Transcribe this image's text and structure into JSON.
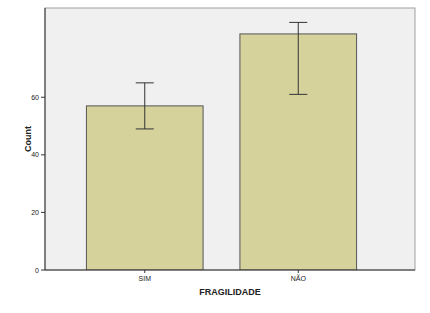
{
  "chart_data": {
    "type": "bar",
    "categories": [
      "SIM",
      "NÃO"
    ],
    "values": [
      57,
      82
    ],
    "error_low": [
      49,
      61
    ],
    "error_high": [
      65,
      86
    ],
    "x_label": "FRAGILIDADE",
    "y_label": "Count",
    "color": "#d6d29c",
    "ylim": [
      0,
      91
    ],
    "yticks": [
      0,
      20,
      40,
      60
    ],
    "grid": false
  }
}
